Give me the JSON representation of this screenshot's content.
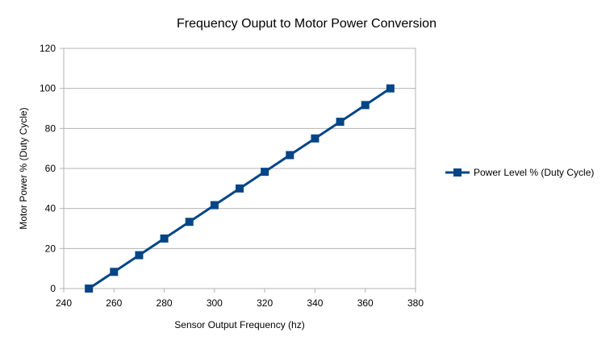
{
  "chart_data": {
    "type": "line",
    "title": "Frequency Ouput to Motor Power Conversion",
    "xlabel": "Sensor Output Frequency (hz)",
    "ylabel": "Motor Power % (Duty Cycle)",
    "xlim": [
      240,
      380
    ],
    "ylim": [
      0,
      120
    ],
    "x_ticks": [
      240,
      260,
      280,
      300,
      320,
      340,
      360,
      380
    ],
    "y_ticks": [
      0,
      20,
      40,
      60,
      80,
      100,
      120
    ],
    "grid": "horizontal",
    "legend_position": "right",
    "series": [
      {
        "name": "Power Level % (Duty Cycle)",
        "color": "#004586",
        "marker": "square",
        "x": [
          250,
          260,
          270,
          280,
          290,
          300,
          310,
          320,
          330,
          340,
          350,
          360,
          370
        ],
        "y": [
          0,
          8.33,
          16.67,
          25,
          33.33,
          41.67,
          50,
          58.33,
          66.67,
          75,
          83.33,
          91.67,
          100
        ]
      }
    ]
  }
}
